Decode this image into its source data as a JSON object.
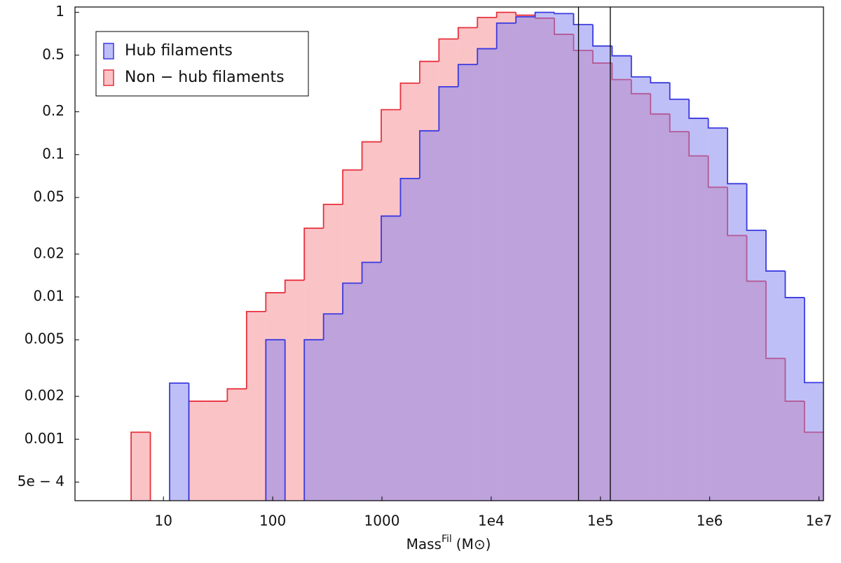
{
  "chart_data": {
    "type": "histogram",
    "xlabel": {
      "base": "Mass",
      "sup": "Fil",
      "unit": "(M⊙)"
    },
    "xscale": "log",
    "yscale": "log",
    "bins": [
      1.5,
      2.25,
      3.375,
      5.06,
      7.59,
      11.39,
      17.09,
      25.63,
      38.44,
      57.67,
      86.5,
      129.7,
      194.6,
      291.9,
      437.9,
      656.8,
      985.3,
      1478,
      2217,
      3325,
      4988,
      7482,
      11223,
      16834,
      25251,
      37877,
      56815,
      85223,
      127834,
      191751,
      287627,
      431440,
      647160,
      970740,
      1456110,
      2184164,
      3276246,
      4914369,
      7371554,
      11057332
    ],
    "series": [
      {
        "name": "Non − hub filaments",
        "color": "#e8323c",
        "fill": "#f58a90",
        "values": [
          0,
          0,
          0,
          0.00112,
          0,
          0,
          0.00185,
          0.00185,
          0.00226,
          0.0079,
          0.0107,
          0.0131,
          0.0304,
          0.0447,
          0.078,
          0.123,
          0.207,
          0.318,
          0.452,
          0.65,
          0.78,
          0.92,
          1.0,
          0.955,
          0.91,
          0.7,
          0.54,
          0.44,
          0.337,
          0.268,
          0.193,
          0.145,
          0.098,
          0.059,
          0.027,
          0.0129,
          0.0037,
          0.00185,
          0.00112
        ]
      },
      {
        "name": "Hub filaments",
        "color": "#3a3ae0",
        "fill": "#7f7ff0",
        "values": [
          0,
          0,
          0,
          0,
          0,
          0.00248,
          0,
          0,
          0,
          0,
          0.005,
          0,
          0.005,
          0.0076,
          0.0125,
          0.0175,
          0.037,
          0.068,
          0.147,
          0.3,
          0.43,
          0.555,
          0.84,
          0.93,
          1.0,
          0.98,
          0.82,
          0.58,
          0.495,
          0.352,
          0.32,
          0.245,
          0.18,
          0.154,
          0.0625,
          0.0294,
          0.0152,
          0.0099,
          0.0025
        ]
      }
    ],
    "vlines": [
      63000,
      123000
    ],
    "xlim": [
      1.55,
      11000000
    ],
    "ylim": [
      0.00037,
      1.09
    ],
    "xticks": [
      10,
      100,
      1000,
      {
        "value": 10000,
        "label": "1e4"
      },
      {
        "value": 100000,
        "label": "1e5"
      },
      {
        "value": 1000000,
        "label": "1e6"
      },
      {
        "value": 10000000,
        "label": "1e7"
      }
    ],
    "yticks": [
      1,
      0.5,
      0.2,
      0.1,
      0.05,
      0.02,
      0.01,
      0.005,
      0.002,
      0.001,
      {
        "value": 0.0005,
        "label": "5e − 4"
      }
    ],
    "legend": "upper left"
  }
}
